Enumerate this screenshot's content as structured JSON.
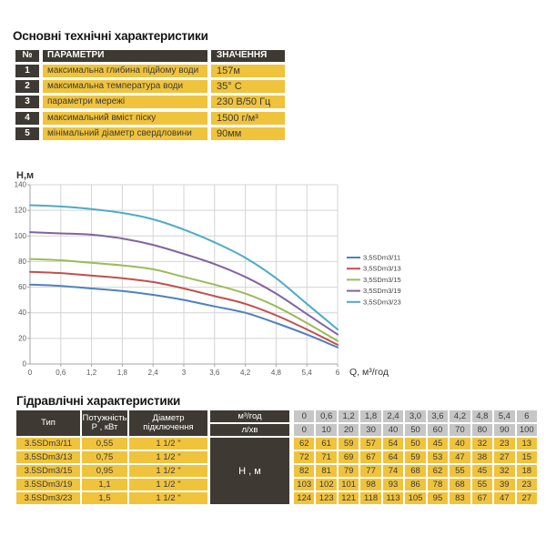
{
  "colors": {
    "dark": "#3E3A33",
    "yellow": "#F0C33C",
    "gray": "#C6C6C6",
    "grid": "#D4D4D4",
    "axis": "#A6A6A6",
    "tick_text": "#595959",
    "text_dark": "#3B3B3B"
  },
  "tech_table": {
    "title": "Основні технічні характеристики",
    "headers": {
      "num": "№",
      "param": "ПАРАМЕТРИ",
      "value": "ЗНАЧЕННЯ"
    },
    "rows": [
      {
        "num": "1",
        "param": "максимальна глибина підйому води",
        "value": "157м"
      },
      {
        "num": "2",
        "param": "максимальна температура води",
        "value": "35° С"
      },
      {
        "num": "3",
        "param": "параметри мережі",
        "value": "230 В/50 Гц"
      },
      {
        "num": "4",
        "param": "максимальний вміст піску",
        "value": "1500 г/м³"
      },
      {
        "num": "5",
        "param": "мінімальний діаметр свердловини",
        "value": "90мм"
      }
    ]
  },
  "chart_data": {
    "type": "line",
    "title": "",
    "ylabel": "Н,м",
    "xlabel": "Q,  м³/год",
    "x": [
      0,
      0.6,
      1.2,
      1.8,
      2.4,
      3.0,
      3.6,
      4.2,
      4.8,
      5.4,
      6.0
    ],
    "x_tick_labels": [
      "0",
      "0,6",
      "1,2",
      "1,8",
      "2,4",
      "3",
      "3,6",
      "4,2",
      "4,8",
      "5,4",
      "6"
    ],
    "xlim": [
      0,
      6
    ],
    "ylim": [
      0,
      140
    ],
    "y_ticks": [
      0,
      20,
      40,
      60,
      80,
      100,
      120,
      140
    ],
    "grid": true,
    "legend_position": "right",
    "series": [
      {
        "name": "3,5SDm3/11",
        "color": "#4F81BD",
        "values": [
          62,
          61,
          59,
          57,
          54,
          50,
          45,
          40,
          32,
          23,
          13
        ]
      },
      {
        "name": "3,5SDm3/13",
        "color": "#C0504D",
        "values": [
          72,
          71,
          69,
          67,
          64,
          59,
          53,
          47,
          38,
          27,
          15
        ]
      },
      {
        "name": "3,5SDm3/15",
        "color": "#9BBB59",
        "values": [
          82,
          81,
          79,
          77,
          74,
          68,
          62,
          55,
          45,
          32,
          18
        ]
      },
      {
        "name": "3,5SDm3/19",
        "color": "#8064A2",
        "values": [
          103,
          102,
          101,
          98,
          93,
          86,
          78,
          68,
          55,
          39,
          23
        ]
      },
      {
        "name": "3,5SDm3/23",
        "color": "#4BACC6",
        "values": [
          124,
          123,
          121,
          118,
          113,
          105,
          95,
          83,
          67,
          47,
          27
        ]
      }
    ]
  },
  "hydraulic_table": {
    "title": "Гідравлічні характеристики",
    "col_headers": {
      "type": "Тип",
      "power": [
        "Потужність",
        "Р , кВт"
      ],
      "diameter": [
        "Діаметр",
        "підключення"
      ]
    },
    "flow_row_labels": {
      "m3h": "м³/год",
      "lmin": "л/хв"
    },
    "head_label": "Н , м",
    "flow_m3h": [
      "0",
      "0,6",
      "1,2",
      "1,8",
      "2,4",
      "3,0",
      "3,6",
      "4,2",
      "4,8",
      "5,4",
      "6"
    ],
    "flow_lmin": [
      "0",
      "10",
      "20",
      "30",
      "40",
      "50",
      "60",
      "70",
      "80",
      "90",
      "100"
    ],
    "rows": [
      {
        "type": "3.5SDm3/11",
        "power": "0,55",
        "diameter": "1 1/2 \"",
        "head_values": [
          62,
          61,
          59,
          57,
          54,
          50,
          45,
          40,
          32,
          23,
          13
        ]
      },
      {
        "type": "3.5SDm3/13",
        "power": "0,75",
        "diameter": "1 1/2 \"",
        "head_values": [
          72,
          71,
          69,
          67,
          64,
          59,
          53,
          47,
          38,
          27,
          15
        ]
      },
      {
        "type": "3.5SDm3/15",
        "power": "0,95",
        "diameter": "1 1/2 \"",
        "head_values": [
          82,
          81,
          79,
          77,
          74,
          68,
          62,
          55,
          45,
          32,
          18
        ]
      },
      {
        "type": "3.5SDm3/19",
        "power": "1,1",
        "diameter": "1 1/2 \"",
        "head_values": [
          103,
          102,
          101,
          98,
          93,
          86,
          78,
          68,
          55,
          39,
          23
        ]
      },
      {
        "type": "3.5SDm3/23",
        "power": "1,5",
        "diameter": "1 1/2 \"",
        "head_values": [
          124,
          123,
          121,
          118,
          113,
          105,
          95,
          83,
          67,
          47,
          27
        ]
      }
    ]
  }
}
